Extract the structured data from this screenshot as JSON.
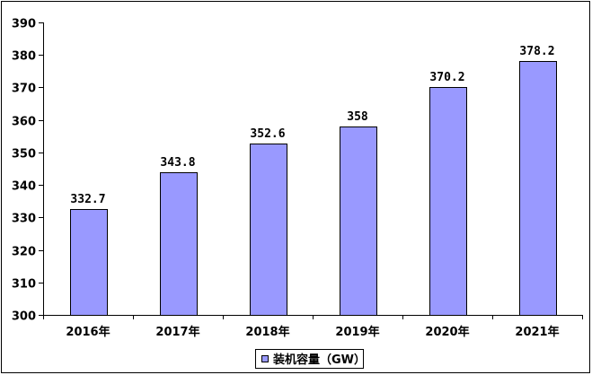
{
  "chart_data": {
    "type": "bar",
    "title": "",
    "xlabel": "",
    "ylabel": "",
    "categories": [
      "2016年",
      "2017年",
      "2018年",
      "2019年",
      "2020年",
      "2021年"
    ],
    "series": [
      {
        "name": "装机容量（GW）",
        "values": [
          332.7,
          343.8,
          352.6,
          358,
          370.2,
          378.2
        ],
        "labels": [
          "332.7",
          "343.8",
          "352.6",
          "358",
          "370.2",
          "378.2"
        ],
        "color": "#9999ff",
        "stroke": "#000000"
      }
    ],
    "ylim": [
      300,
      390
    ],
    "yticks": [
      300,
      310,
      320,
      330,
      340,
      350,
      360,
      370,
      380,
      390
    ],
    "grid": false,
    "legend": "bottom-center"
  }
}
